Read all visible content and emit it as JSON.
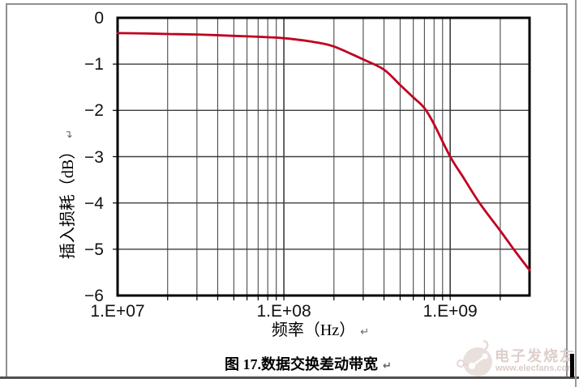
{
  "figure": {
    "caption": "图 17.数据交换差动带宽",
    "return_mark": "↵"
  },
  "watermark": {
    "brand": "电子发烧友",
    "url": "www.elecfans.com"
  },
  "chart_data": {
    "type": "line",
    "title": "图 17.数据交换差动带宽",
    "xlabel": "频率（Hz）",
    "ylabel": "插入损耗（dB）",
    "x_scale": "log",
    "xlim": [
      10000000.0,
      3000000000.0
    ],
    "ylim": [
      -6,
      0
    ],
    "grid": true,
    "legend_position": "none",
    "x_ticks": [
      {
        "value": 10000000.0,
        "label": "1.E+07"
      },
      {
        "value": 100000000.0,
        "label": "1.E+08"
      },
      {
        "value": 1000000000.0,
        "label": "1.E+09"
      }
    ],
    "y_ticks": [
      {
        "value": 0,
        "label": "0"
      },
      {
        "value": -1,
        "label": "−1"
      },
      {
        "value": -2,
        "label": "−2"
      },
      {
        "value": -3,
        "label": "−3"
      },
      {
        "value": -4,
        "label": "−4"
      },
      {
        "value": -5,
        "label": "−5"
      },
      {
        "value": -6,
        "label": "−6"
      }
    ],
    "series": [
      {
        "name": "插入损耗",
        "color": "#c00020",
        "points": [
          [
            10000000.0,
            -0.33
          ],
          [
            15000000.0,
            -0.34
          ],
          [
            20000000.0,
            -0.35
          ],
          [
            30000000.0,
            -0.36
          ],
          [
            50000000.0,
            -0.39
          ],
          [
            70000000.0,
            -0.41
          ],
          [
            100000000.0,
            -0.44
          ],
          [
            150000000.0,
            -0.52
          ],
          [
            200000000.0,
            -0.62
          ],
          [
            300000000.0,
            -0.9
          ],
          [
            400000000.0,
            -1.12
          ],
          [
            500000000.0,
            -1.45
          ],
          [
            600000000.0,
            -1.72
          ],
          [
            700000000.0,
            -1.95
          ],
          [
            800000000.0,
            -2.3
          ],
          [
            1000000000.0,
            -3.0
          ],
          [
            1200000000.0,
            -3.45
          ],
          [
            1500000000.0,
            -4.0
          ],
          [
            2000000000.0,
            -4.6
          ],
          [
            2500000000.0,
            -5.08
          ],
          [
            3000000000.0,
            -5.45
          ]
        ]
      }
    ]
  },
  "colors": {
    "curve": "#c00020",
    "grid_minor": "#4a4a4a",
    "grid_major": "#3d3d3d",
    "plot_border": "#000000",
    "frame_border": "#8f8f8f",
    "text": "#121212",
    "watermark": "#ddcfca"
  }
}
